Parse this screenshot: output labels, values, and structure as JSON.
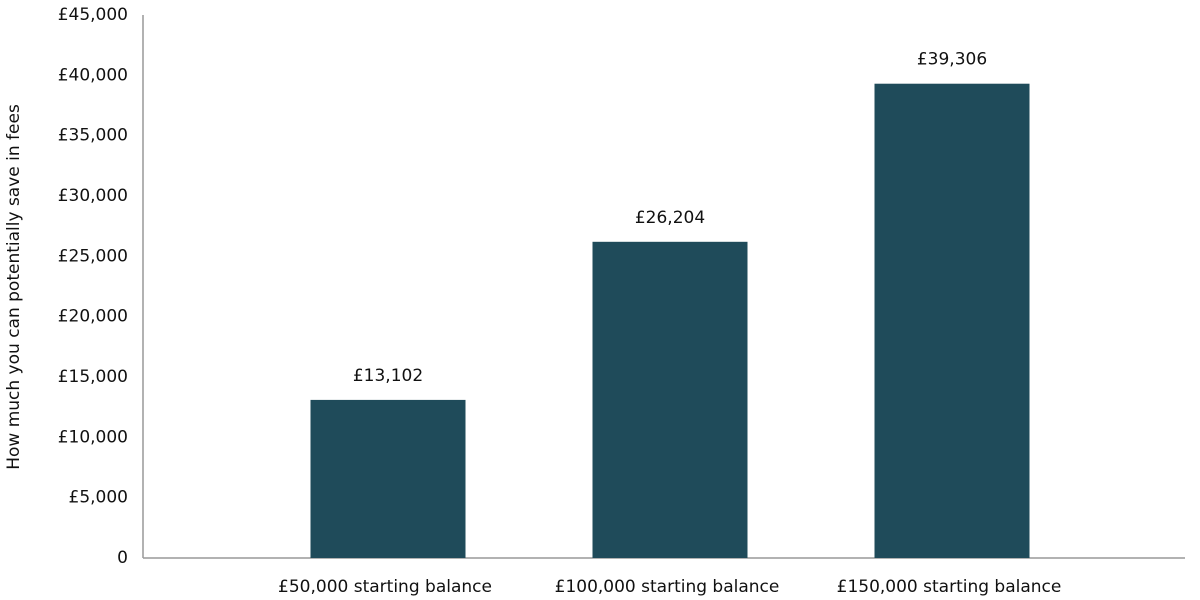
{
  "chart_data": {
    "type": "bar",
    "y_label": "How much you can potentially save in fees",
    "categories": [
      "£50,000 starting balance",
      "£100,000 starting balance",
      "£150,000 starting balance"
    ],
    "values": [
      13102,
      26204,
      39306
    ],
    "value_labels": [
      "£13,102",
      "£26,204",
      "£39,306"
    ],
    "color": "#1f4b5a",
    "ylim": [
      0,
      45000
    ],
    "yticks": [
      0,
      {
        "value": 5000,
        "label": "£5,000"
      },
      {
        "value": 10000,
        "label": "£10,000"
      },
      {
        "value": 15000,
        "label": "£15,000"
      },
      {
        "value": 20000,
        "label": "£20,000"
      },
      {
        "value": 25000,
        "label": "£25,000"
      },
      {
        "value": 30000,
        "label": "£30,000"
      },
      {
        "value": 35000,
        "label": "£35,000"
      },
      {
        "value": 40000,
        "label": "£40,000"
      },
      {
        "value": 45000,
        "label": "£45,000"
      }
    ],
    "grid": false
  }
}
